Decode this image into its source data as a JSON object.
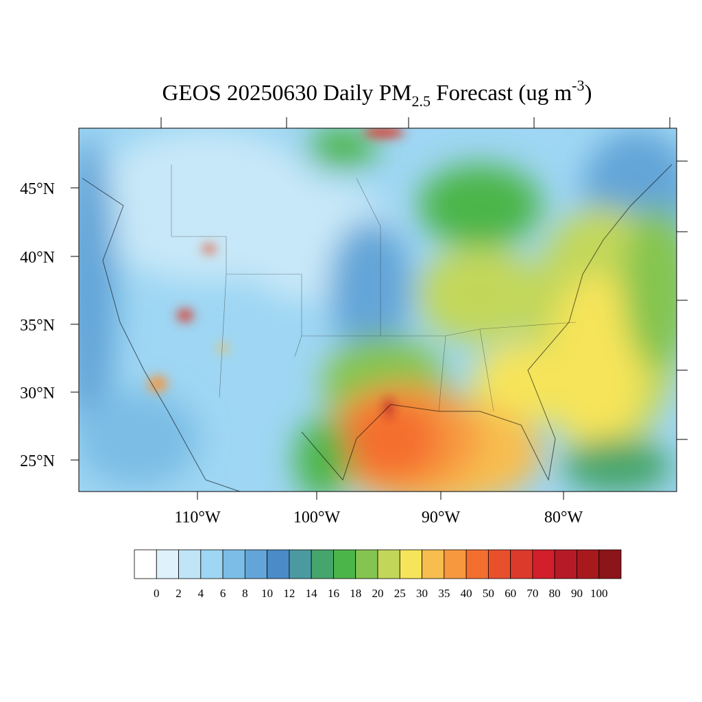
{
  "title": {
    "main": "GEOS 20250630 Daily PM",
    "subscript": "2.5",
    "after": " Forecast (ug m",
    "superscript": "-3",
    "close": ")"
  },
  "map": {
    "lat_labels": [
      "45°N",
      "40°N",
      "35°N",
      "30°N",
      "25°N"
    ],
    "lon_labels": [
      "110°W",
      "100°W",
      "90°W",
      "80°W"
    ]
  },
  "colorbar": {
    "levels": [
      0,
      2,
      4,
      6,
      8,
      10,
      12,
      14,
      16,
      18,
      20,
      25,
      30,
      35,
      40,
      50,
      60,
      70,
      80,
      90,
      100
    ],
    "colors": [
      "#ffffff",
      "#dff1fb",
      "#bfe5f7",
      "#9ed6f3",
      "#7cbde5",
      "#63a5d8",
      "#4a8bc8",
      "#4b9aa0",
      "#46a56c",
      "#4cb54a",
      "#84c450",
      "#c2d75a",
      "#f6e45a",
      "#f7bd4f",
      "#f7983f",
      "#f46e2f",
      "#e8502c",
      "#dc3a2b",
      "#d21f2b",
      "#b61a26",
      "#a8191e",
      "#8c1519"
    ]
  }
}
